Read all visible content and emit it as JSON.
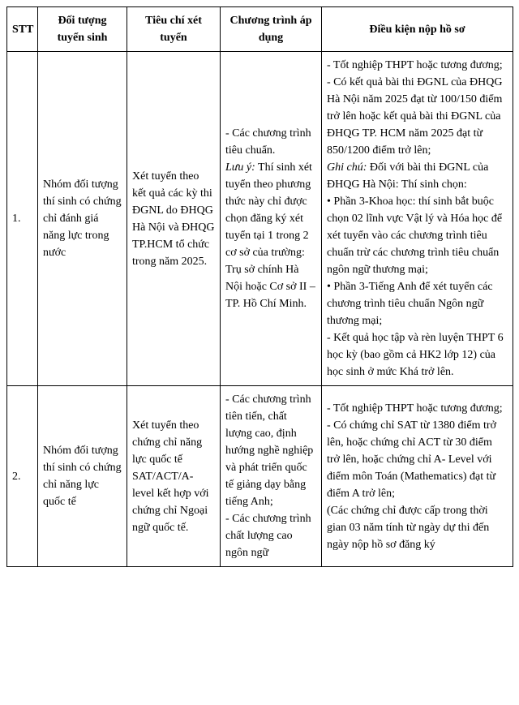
{
  "headers": {
    "stt": "STT",
    "doi_tuong": "Đối tượng tuyển sinh",
    "tieu_chi": "Tiêu chí xét tuyển",
    "chuong_trinh": "Chương trình áp dụng",
    "dieu_kien": "Điều kiện nộp hồ sơ"
  },
  "rows": [
    {
      "stt": "1.",
      "doi_tuong": "Nhóm đối tượng thí sinh có chứng chỉ đánh giá năng lực trong nước",
      "tieu_chi": "Xét tuyển theo kết quả các kỳ thi ĐGNL do ĐHQG Hà Nội và ĐHQG TP.HCM tổ chức trong năm 2025.",
      "ct_pre": "- Các chương trình tiêu chuẩn.",
      "ct_em": "Lưu ý:",
      "ct_post": " Thí sinh xét tuyển theo phương thức này chỉ được chọn đăng ký xét tuyển tại 1 trong 2 cơ sở của trường: Trụ sở chính Hà Nội hoặc Cơ sở II – TP. Hồ Chí Minh.",
      "dk_pre": "- Tốt nghiệp THPT hoặc tương đương;\n- Có kết quả bài thi ĐGNL của ĐHQG Hà Nội năm 2025 đạt từ 100/150 điểm trở lên hoặc kết quả bài thi ĐGNL của ĐHQG TP. HCM năm 2025 đạt từ 850/1200 điểm trở lên;",
      "dk_em": "Ghi chú:",
      "dk_post": " Đối với bài thi ĐGNL của ĐHQG Hà Nội: Thí sinh chọn:\n• Phần 3-Khoa học: thí sinh bắt buộc chọn 02 lĩnh vực Vật lý và Hóa học để xét tuyển vào các chương trình tiêu chuẩn trừ các chương trình tiêu chuẩn ngôn ngữ thương mại;\n • Phần 3-Tiếng Anh để xét tuyển các chương trình tiêu chuẩn Ngôn ngữ thương mại;\n- Kết quả học tập và rèn luyện THPT 6 học kỳ (bao gồm cả HK2 lớp 12) của học sinh ở mức Khá trở lên."
    },
    {
      "stt": "2.",
      "doi_tuong": "Nhóm đối tượng thí sinh có chứng chỉ năng lực quốc tế",
      "tieu_chi": "Xét tuyển theo chứng chỉ năng lực quốc tế SAT/ACT/A-level kết hợp với chứng chỉ Ngoại ngữ quốc tế.",
      "ct_pre": "- Các chương trình tiên tiến, chất lượng cao, định hướng nghề nghiệp và phát triển quốc tế giảng dạy bằng tiếng Anh;\n- Các chương trình chất lượng cao ngôn ngữ",
      "ct_em": "",
      "ct_post": "",
      "dk_pre": "- Tốt nghiệp THPT hoặc tương đương;\n- Có chứng chỉ SAT từ 1380 điểm trở lên, hoặc chứng chỉ ACT từ 30 điểm trở lên, hoặc chứng chỉ A- Level với điểm môn Toán (Mathematics) đạt từ điểm A trở lên;\n(Các chứng chỉ được cấp trong thời gian 03 năm tính từ ngày dự thi đến ngày nộp hồ sơ đăng ký",
      "dk_em": "",
      "dk_post": ""
    }
  ]
}
